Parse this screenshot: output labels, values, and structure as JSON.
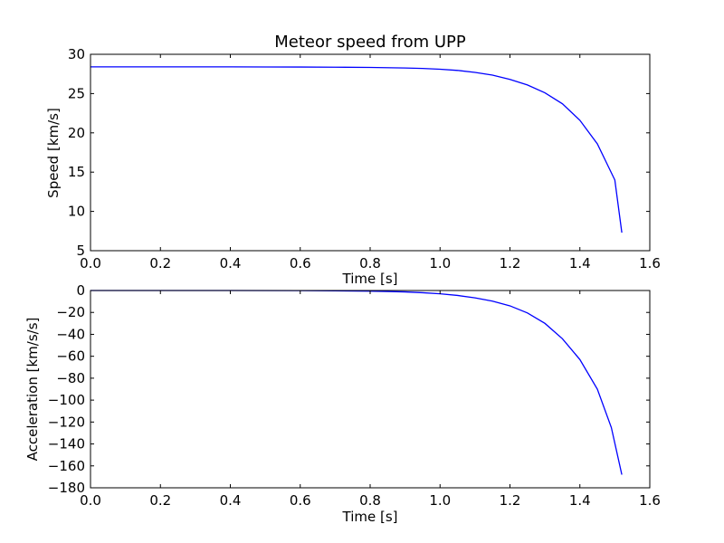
{
  "chart_data": [
    {
      "type": "line",
      "title": "Meteor speed from UPP",
      "xlabel": "Time [s]",
      "ylabel": "Speed [km/s]",
      "xlim": [
        0.0,
        1.6
      ],
      "ylim": [
        5,
        30
      ],
      "xticks": [
        "0.0",
        "0.2",
        "0.4",
        "0.6",
        "0.8",
        "1.0",
        "1.2",
        "1.4",
        "1.6"
      ],
      "yticks": [
        "5",
        "10",
        "15",
        "20",
        "25",
        "30"
      ],
      "series": [
        {
          "color": "#0000ff",
          "x": [
            0.0,
            0.1,
            0.2,
            0.3,
            0.4,
            0.5,
            0.6,
            0.7,
            0.8,
            0.9,
            0.95,
            1.0,
            1.05,
            1.1,
            1.15,
            1.2,
            1.25,
            1.3,
            1.35,
            1.4,
            1.45,
            1.5,
            1.52
          ],
          "y": [
            28.4,
            28.4,
            28.4,
            28.4,
            28.4,
            28.39,
            28.38,
            28.36,
            28.33,
            28.26,
            28.2,
            28.1,
            27.95,
            27.7,
            27.35,
            26.8,
            26.1,
            25.1,
            23.7,
            21.6,
            18.6,
            14.0,
            7.3
          ]
        }
      ]
    },
    {
      "type": "line",
      "title": "",
      "xlabel": "Time [s]",
      "ylabel": "Acceleration [km/s/s]",
      "xlim": [
        0.0,
        1.6
      ],
      "ylim": [
        -180,
        0
      ],
      "xticks": [
        "0.0",
        "0.2",
        "0.4",
        "0.6",
        "0.8",
        "1.0",
        "1.2",
        "1.4",
        "1.6"
      ],
      "yticks": [
        "0",
        "−20",
        "−40",
        "−60",
        "−80",
        "−100",
        "−120",
        "−140",
        "−160",
        "−180"
      ],
      "series": [
        {
          "color": "#0000ff",
          "x": [
            0.0,
            0.2,
            0.4,
            0.6,
            0.7,
            0.8,
            0.85,
            0.9,
            0.95,
            1.0,
            1.05,
            1.1,
            1.15,
            1.2,
            1.25,
            1.3,
            1.35,
            1.4,
            1.45,
            1.49,
            1.52
          ],
          "y": [
            0,
            0,
            0,
            -0.1,
            -0.3,
            -0.6,
            -0.9,
            -1.3,
            -2.0,
            -3.0,
            -4.5,
            -6.7,
            -9.7,
            -14.0,
            -20.5,
            -30.0,
            -44.0,
            -63.0,
            -90.0,
            -125.0,
            -168.0
          ]
        }
      ]
    }
  ]
}
